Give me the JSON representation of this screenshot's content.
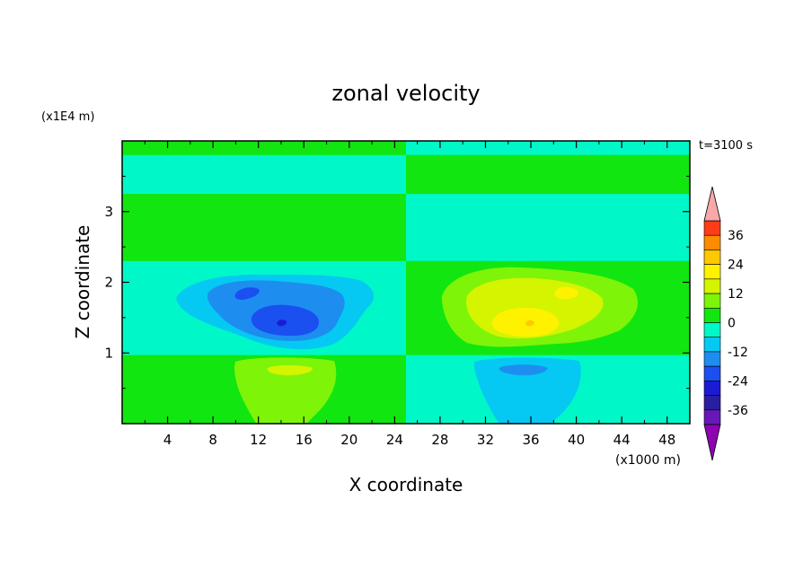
{
  "chart_data": {
    "type": "heatmap",
    "title": "zonal velocity",
    "xlabel": "X coordinate",
    "ylabel": "Z coordinate",
    "x_unit": "(x1000 m)",
    "y_unit": "(x1E4 m)",
    "time_label": "t=3100 s",
    "xlim": [
      0,
      50
    ],
    "ylim": [
      0,
      4
    ],
    "x_ticks": [
      "4",
      "8",
      "12",
      "16",
      "20",
      "24",
      "28",
      "32",
      "36",
      "40",
      "44",
      "48"
    ],
    "y_ticks": [
      "1",
      "2",
      "3"
    ],
    "colorbar": {
      "tick_labels": [
        "36",
        "24",
        "12",
        "0",
        "-12",
        "-24",
        "-36"
      ],
      "levels": [
        -42,
        -36,
        -30,
        -24,
        -18,
        -12,
        -6,
        0,
        6,
        12,
        18,
        24,
        30,
        36,
        42
      ],
      "colors": [
        "#8e04b0",
        "#6818b6",
        "#2a1ea0",
        "#1b1bd4",
        "#1a4ff0",
        "#1d8ef0",
        "#05c9f2",
        "#00f8c8",
        "#12e610",
        "#7ef408",
        "#d4f400",
        "#fff200",
        "#ffc800",
        "#ff8c00",
        "#ff3c18",
        "#f8a8a8"
      ]
    },
    "field": {
      "background": 1.5,
      "layers": [
        {
          "x": [
            0,
            25
          ],
          "z": [
            3.8,
            4.0
          ],
          "value": 1.5
        },
        {
          "x": [
            0,
            25
          ],
          "z": [
            3.25,
            3.8
          ],
          "value": -1.5
        },
        {
          "x": [
            0,
            25
          ],
          "z": [
            2.3,
            3.25
          ],
          "value": 1.5
        },
        {
          "x": [
            0,
            25
          ],
          "z": [
            0.97,
            2.3
          ],
          "value": -1.5
        },
        {
          "x": [
            0,
            25
          ],
          "z": [
            0,
            0.97
          ],
          "value": 1.5
        },
        {
          "x": [
            25,
            50
          ],
          "z": [
            3.8,
            4.0
          ],
          "value": -1.5
        },
        {
          "x": [
            25,
            50
          ],
          "z": [
            3.25,
            3.8
          ],
          "value": 1.5
        },
        {
          "x": [
            25,
            50
          ],
          "z": [
            2.3,
            3.25
          ],
          "value": -1.5
        },
        {
          "x": [
            25,
            50
          ],
          "z": [
            0.97,
            2.3
          ],
          "value": 1.5
        },
        {
          "x": [
            25,
            50
          ],
          "z": [
            0,
            0.97
          ],
          "value": -1.5
        }
      ],
      "features": [
        {
          "x": 15,
          "z": 1.6,
          "value": -16,
          "label": "negative core"
        },
        {
          "x": 35,
          "z": 1.6,
          "value": 16,
          "label": "positive core"
        },
        {
          "x": 15,
          "z": 0.7,
          "value": 8,
          "label": "lower positive lobe"
        },
        {
          "x": 35,
          "z": 0.7,
          "value": -8,
          "label": "lower negative lobe"
        }
      ]
    }
  }
}
